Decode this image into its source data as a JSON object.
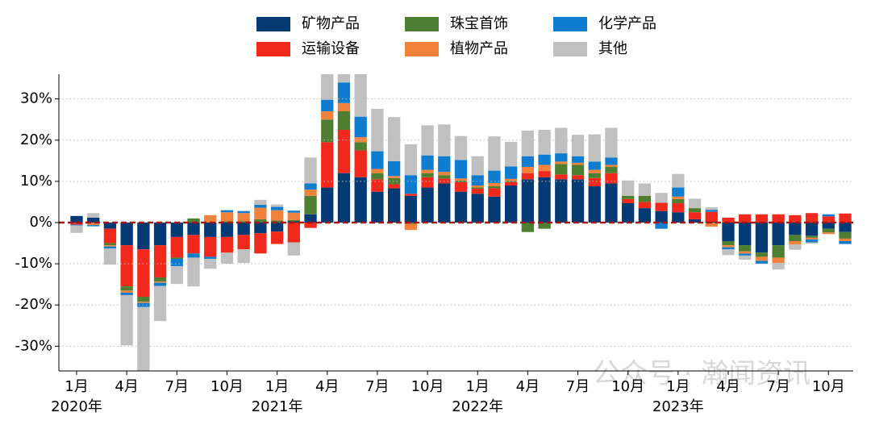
{
  "chart_data": {
    "type": "stacked_bar",
    "categories": [
      "1月",
      null,
      null,
      "4月",
      null,
      null,
      "7月",
      null,
      null,
      "10月",
      null,
      null,
      "1月",
      null,
      null,
      "4月",
      null,
      null,
      "7月",
      null,
      null,
      "10月",
      null,
      null,
      "1月",
      null,
      null,
      "4月",
      null,
      null,
      "7月",
      null,
      null,
      "10月",
      null,
      null,
      "1月",
      null,
      null,
      "4月",
      null,
      null,
      "7月",
      null,
      null,
      "10月",
      null
    ],
    "years": [
      {
        "index": 0,
        "label": "2020年"
      },
      {
        "index": 12,
        "label": "2021年"
      },
      {
        "index": 24,
        "label": "2022年"
      },
      {
        "index": 36,
        "label": "2023年"
      }
    ],
    "ylim": [
      -36,
      36
    ],
    "yticks": [
      {
        "value": -30,
        "label": "-30%"
      },
      {
        "value": -20,
        "label": "-20%"
      },
      {
        "value": -10,
        "label": "-10%"
      },
      {
        "value": 0,
        "label": "0%"
      },
      {
        "value": 10,
        "label": "10%"
      },
      {
        "value": 20,
        "label": "20%"
      },
      {
        "value": 30,
        "label": "30%"
      }
    ],
    "grid": true,
    "legend": "top",
    "watermark": "公众号 · 瀚闻资讯",
    "series": [
      {
        "name": "矿物产品",
        "color": "#033a74",
        "values": [
          1.6,
          1.2,
          -1.5,
          -5.5,
          -6.5,
          -5.5,
          -3.5,
          -3,
          -3.5,
          -3.5,
          -3,
          -2.6,
          -2.2,
          0.3,
          2,
          8.5,
          12,
          11,
          7.5,
          8.3,
          6.5,
          8.5,
          9.5,
          7.5,
          7,
          6.3,
          9,
          10.5,
          11,
          10.5,
          10.5,
          8.8,
          9.5,
          4.7,
          3.5,
          2.8,
          2.5,
          0.8,
          0.2,
          -4.5,
          -5.5,
          -7.3,
          -5.5,
          -3,
          -3.2,
          -1.5,
          -2.3
        ]
      },
      {
        "name": "运输设备",
        "color": "#f0291c",
        "values": [
          -0.5,
          0,
          -3.5,
          -10,
          -11.5,
          -7.8,
          -5,
          -4.5,
          -4.8,
          -3.8,
          -3.5,
          -4.9,
          -3,
          -4.8,
          -1.3,
          11,
          10.5,
          6.5,
          3,
          1,
          0.5,
          2.5,
          1.2,
          2.3,
          1.2,
          2,
          0.8,
          1.5,
          1.5,
          1.2,
          1,
          2,
          2.5,
          1,
          1.5,
          2,
          2.2,
          1.7,
          2.4,
          1.2,
          2,
          2,
          2,
          1.8,
          2.3,
          1.5,
          2.2
        ]
      },
      {
        "name": "珠宝首饰",
        "color": "#4e7e31",
        "values": [
          0,
          0,
          -0.5,
          -1,
          -1.2,
          -1,
          -0.3,
          1,
          0,
          0.3,
          0.3,
          0.8,
          0.5,
          0.3,
          4.5,
          5.5,
          4.5,
          2,
          1.5,
          1.5,
          -0.3,
          1,
          0.8,
          0.4,
          0.3,
          0.5,
          0.3,
          -2.3,
          -1.5,
          2.5,
          2.5,
          1.2,
          1.5,
          0.8,
          1.5,
          0,
          1,
          1,
          0,
          -1,
          -1.5,
          -1,
          -3,
          -1.5,
          -0.5,
          -0.9,
          -1.6
        ]
      },
      {
        "name": "植物产品",
        "color": "#f0823c",
        "values": [
          0,
          -0.6,
          -0.3,
          -0.5,
          -0.3,
          -0.3,
          0,
          0,
          1.8,
          2.2,
          2,
          2.8,
          2.5,
          1.8,
          1.5,
          2,
          2,
          1.2,
          1,
          0.5,
          -1.5,
          0.8,
          0.8,
          0.5,
          0.5,
          0.8,
          0.5,
          1.5,
          1.5,
          0.6,
          0.5,
          0.8,
          0.5,
          0,
          0,
          0,
          0.6,
          0,
          -1,
          -0.5,
          -0.5,
          -1,
          -1.3,
          -0.8,
          -0.4,
          -0.4,
          -0.6
        ]
      },
      {
        "name": "化学产品",
        "color": "#0f7dcf",
        "values": [
          -0.2,
          -0.3,
          -0.5,
          -0.6,
          -1,
          -0.8,
          -1.8,
          -1,
          -0.5,
          0.5,
          0.5,
          0.7,
          0.8,
          0.5,
          1.5,
          2.8,
          5,
          5,
          4.3,
          3.6,
          4.5,
          3.5,
          3.8,
          4.5,
          2.5,
          3,
          3,
          2.6,
          2.5,
          2,
          1.6,
          2,
          1.8,
          0,
          0,
          -1.5,
          2.2,
          0,
          0.5,
          -0.5,
          -0.5,
          -0.7,
          0,
          0,
          -0.7,
          0.5,
          -0.7
        ]
      },
      {
        "name": "其他",
        "color": "#c0c0c0",
        "values": [
          -1.8,
          1.1,
          -3.9,
          -12.2,
          -16.5,
          -8.5,
          -4.3,
          -7,
          -2.4,
          -2.7,
          -3.3,
          1.2,
          0.6,
          -3.2,
          6.3,
          7,
          3,
          11,
          10.3,
          10.7,
          7.5,
          7.3,
          7.7,
          5.8,
          4.6,
          8.3,
          6,
          6.2,
          6,
          6.2,
          5.2,
          6.6,
          7.2,
          3.7,
          3,
          2.4,
          3.3,
          2.3,
          0.6,
          -1.4,
          -1,
          0,
          -1.6,
          -1.3,
          -0.3,
          0,
          0
        ]
      }
    ]
  }
}
